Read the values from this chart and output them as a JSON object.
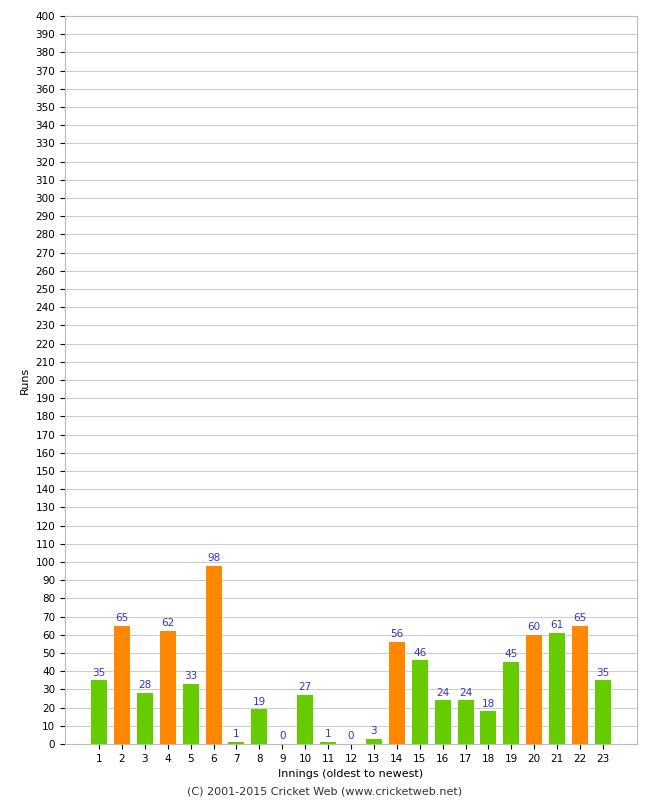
{
  "xlabel": "Innings (oldest to newest)",
  "ylabel": "Runs",
  "innings": [
    1,
    2,
    3,
    4,
    5,
    6,
    7,
    8,
    9,
    10,
    11,
    12,
    13,
    14,
    15,
    16,
    17,
    18,
    19,
    20,
    21,
    22,
    23
  ],
  "values": [
    35,
    65,
    28,
    62,
    33,
    98,
    1,
    19,
    0,
    27,
    1,
    0,
    3,
    56,
    46,
    24,
    24,
    18,
    45,
    60,
    61,
    65,
    35
  ],
  "colors": [
    "#66cc00",
    "#ff8800",
    "#66cc00",
    "#ff8800",
    "#66cc00",
    "#ff8800",
    "#66cc00",
    "#66cc00",
    "#ff8800",
    "#66cc00",
    "#66cc00",
    "#ff8800",
    "#66cc00",
    "#ff8800",
    "#66cc00",
    "#66cc00",
    "#66cc00",
    "#66cc00",
    "#66cc00",
    "#ff8800",
    "#66cc00",
    "#ff8800",
    "#66cc00"
  ],
  "ylim": [
    0,
    400
  ],
  "background_color": "#ffffff",
  "grid_color": "#cccccc",
  "bar_label_color": "#3333cc",
  "bar_label_fontsize": 7.5,
  "axis_label_fontsize": 8,
  "tick_fontsize": 7.5,
  "footer": "(C) 2001-2015 Cricket Web (www.cricketweb.net)",
  "footer_fontsize": 8
}
